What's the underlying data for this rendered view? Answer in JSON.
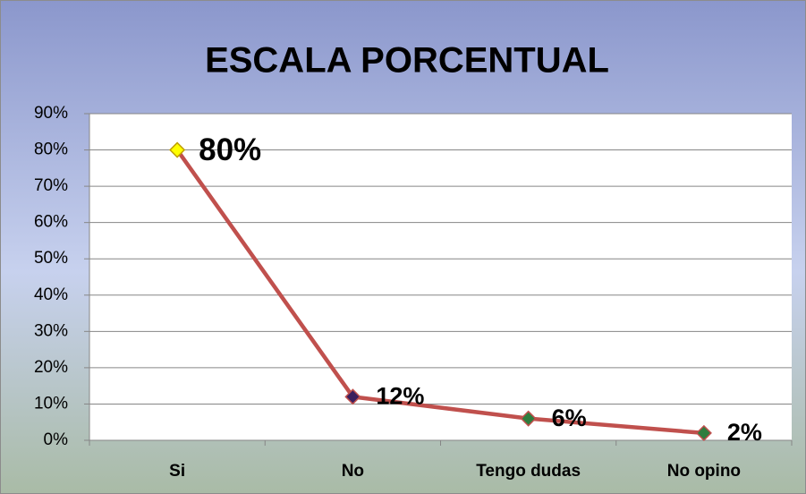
{
  "chart_data": {
    "type": "line",
    "title": "ESCALA PORCENTUAL",
    "categories": [
      "Si",
      "No",
      "Tengo dudas",
      "No opino"
    ],
    "values": [
      80,
      12,
      6,
      2
    ],
    "value_labels": [
      "80%",
      "12%",
      "6%",
      "2%"
    ],
    "color": "#c0504d",
    "marker_colors": [
      "#ffff00",
      "#3b1f5e",
      "#2e7d3e",
      "#2e7d3e"
    ],
    "ylim": [
      0,
      90
    ],
    "yticks": [
      {
        "value": 0,
        "label": "0%"
      },
      {
        "value": 10,
        "label": "10%"
      },
      {
        "value": 20,
        "label": "20%"
      },
      {
        "value": 30,
        "label": "30%"
      },
      {
        "value": 40,
        "label": "40%"
      },
      {
        "value": 50,
        "label": "50%"
      },
      {
        "value": 60,
        "label": "60%"
      },
      {
        "value": 70,
        "label": "70%"
      },
      {
        "value": 80,
        "label": "80%"
      },
      {
        "value": 90,
        "label": "90%"
      }
    ],
    "grid": true
  }
}
